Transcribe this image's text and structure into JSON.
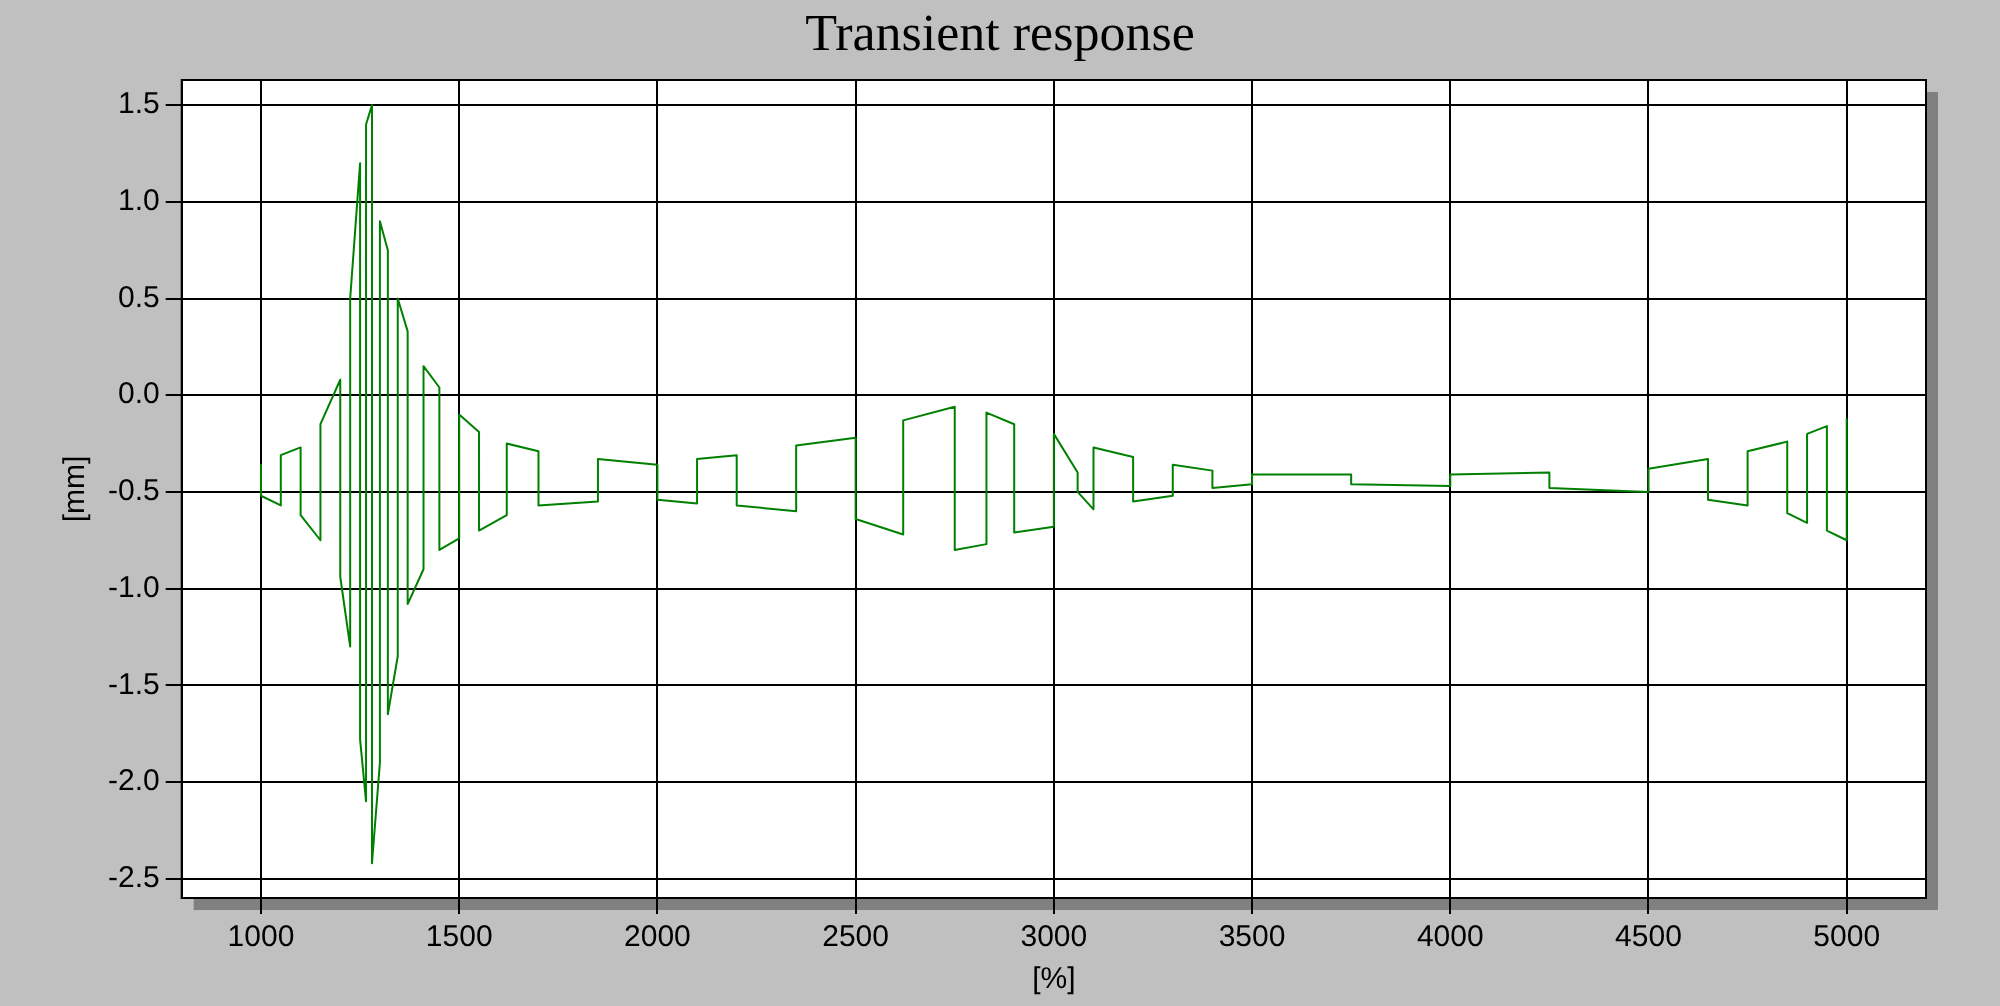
{
  "chart_data": {
    "type": "line",
    "title": "Transient response",
    "xlabel": "[%]",
    "ylabel": "[mm]",
    "xlim": [
      800,
      5200
    ],
    "xticks": [
      1000,
      1500,
      2000,
      2500,
      3000,
      3500,
      4000,
      4500,
      5000
    ],
    "ylim": [
      -2.6,
      1.63
    ],
    "yticks": [
      -2.5,
      {
        "value": -2,
        "label": "-2.0"
      },
      -1.5,
      {
        "value": -1,
        "label": "-1.0"
      },
      -0.5,
      {
        "value": 0,
        "label": "0.0"
      },
      0.5,
      {
        "value": 1,
        "label": "1.0"
      },
      1.5
    ],
    "grid": true,
    "legend": false,
    "marker": "none",
    "line_style": "solid",
    "series": [
      {
        "color": "#008000",
        "x": [
          1000,
          1000,
          1050,
          1050,
          1100,
          1100,
          1150,
          1150,
          1200,
          1200,
          1225,
          1225,
          1250,
          1250,
          1265,
          1265,
          1280,
          1280,
          1300,
          1300,
          1320,
          1320,
          1345,
          1345,
          1370,
          1370,
          1410,
          1410,
          1450,
          1450,
          1500,
          1500,
          1550,
          1550,
          1620,
          1620,
          1700,
          1700,
          1850,
          1850,
          2000,
          2000,
          2100,
          2100,
          2200,
          2200,
          2350,
          2350,
          2500,
          2500,
          2620,
          2620,
          2750,
          2750,
          2830,
          2830,
          2900,
          2900,
          3000,
          3000,
          3060,
          3060,
          3100,
          3100,
          3200,
          3200,
          3300,
          3300,
          3400,
          3400,
          3500,
          3500,
          3750,
          3750,
          4000,
          4000,
          4250,
          4250,
          4500,
          4500,
          4650,
          4650,
          4750,
          4750,
          4850,
          4850,
          4900,
          4900,
          4950,
          4950,
          5000,
          5000
        ],
        "values": [
          -0.36,
          -0.52,
          -0.57,
          -0.31,
          -0.27,
          -0.62,
          -0.75,
          -0.15,
          0.08,
          -0.94,
          -1.3,
          0.5,
          1.2,
          -1.78,
          -2.1,
          1.4,
          1.5,
          -2.42,
          -1.9,
          0.9,
          0.75,
          -1.65,
          -1.35,
          0.5,
          0.33,
          -1.08,
          -0.9,
          0.15,
          0.04,
          -0.8,
          -0.74,
          -0.1,
          -0.19,
          -0.7,
          -0.62,
          -0.25,
          -0.29,
          -0.57,
          -0.55,
          -0.33,
          -0.36,
          -0.54,
          -0.56,
          -0.33,
          -0.31,
          -0.57,
          -0.6,
          -0.26,
          -0.22,
          -0.64,
          -0.72,
          -0.13,
          -0.06,
          -0.8,
          -0.77,
          -0.09,
          -0.15,
          -0.71,
          -0.68,
          -0.2,
          -0.4,
          -0.5,
          -0.59,
          -0.27,
          -0.32,
          -0.55,
          -0.52,
          -0.36,
          -0.39,
          -0.48,
          -0.46,
          -0.41,
          -0.41,
          -0.46,
          -0.47,
          -0.41,
          -0.4,
          -0.48,
          -0.5,
          -0.38,
          -0.33,
          -0.54,
          -0.57,
          -0.29,
          -0.24,
          -0.61,
          -0.66,
          -0.2,
          -0.16,
          -0.7,
          -0.75,
          -0.12
        ]
      }
    ]
  }
}
